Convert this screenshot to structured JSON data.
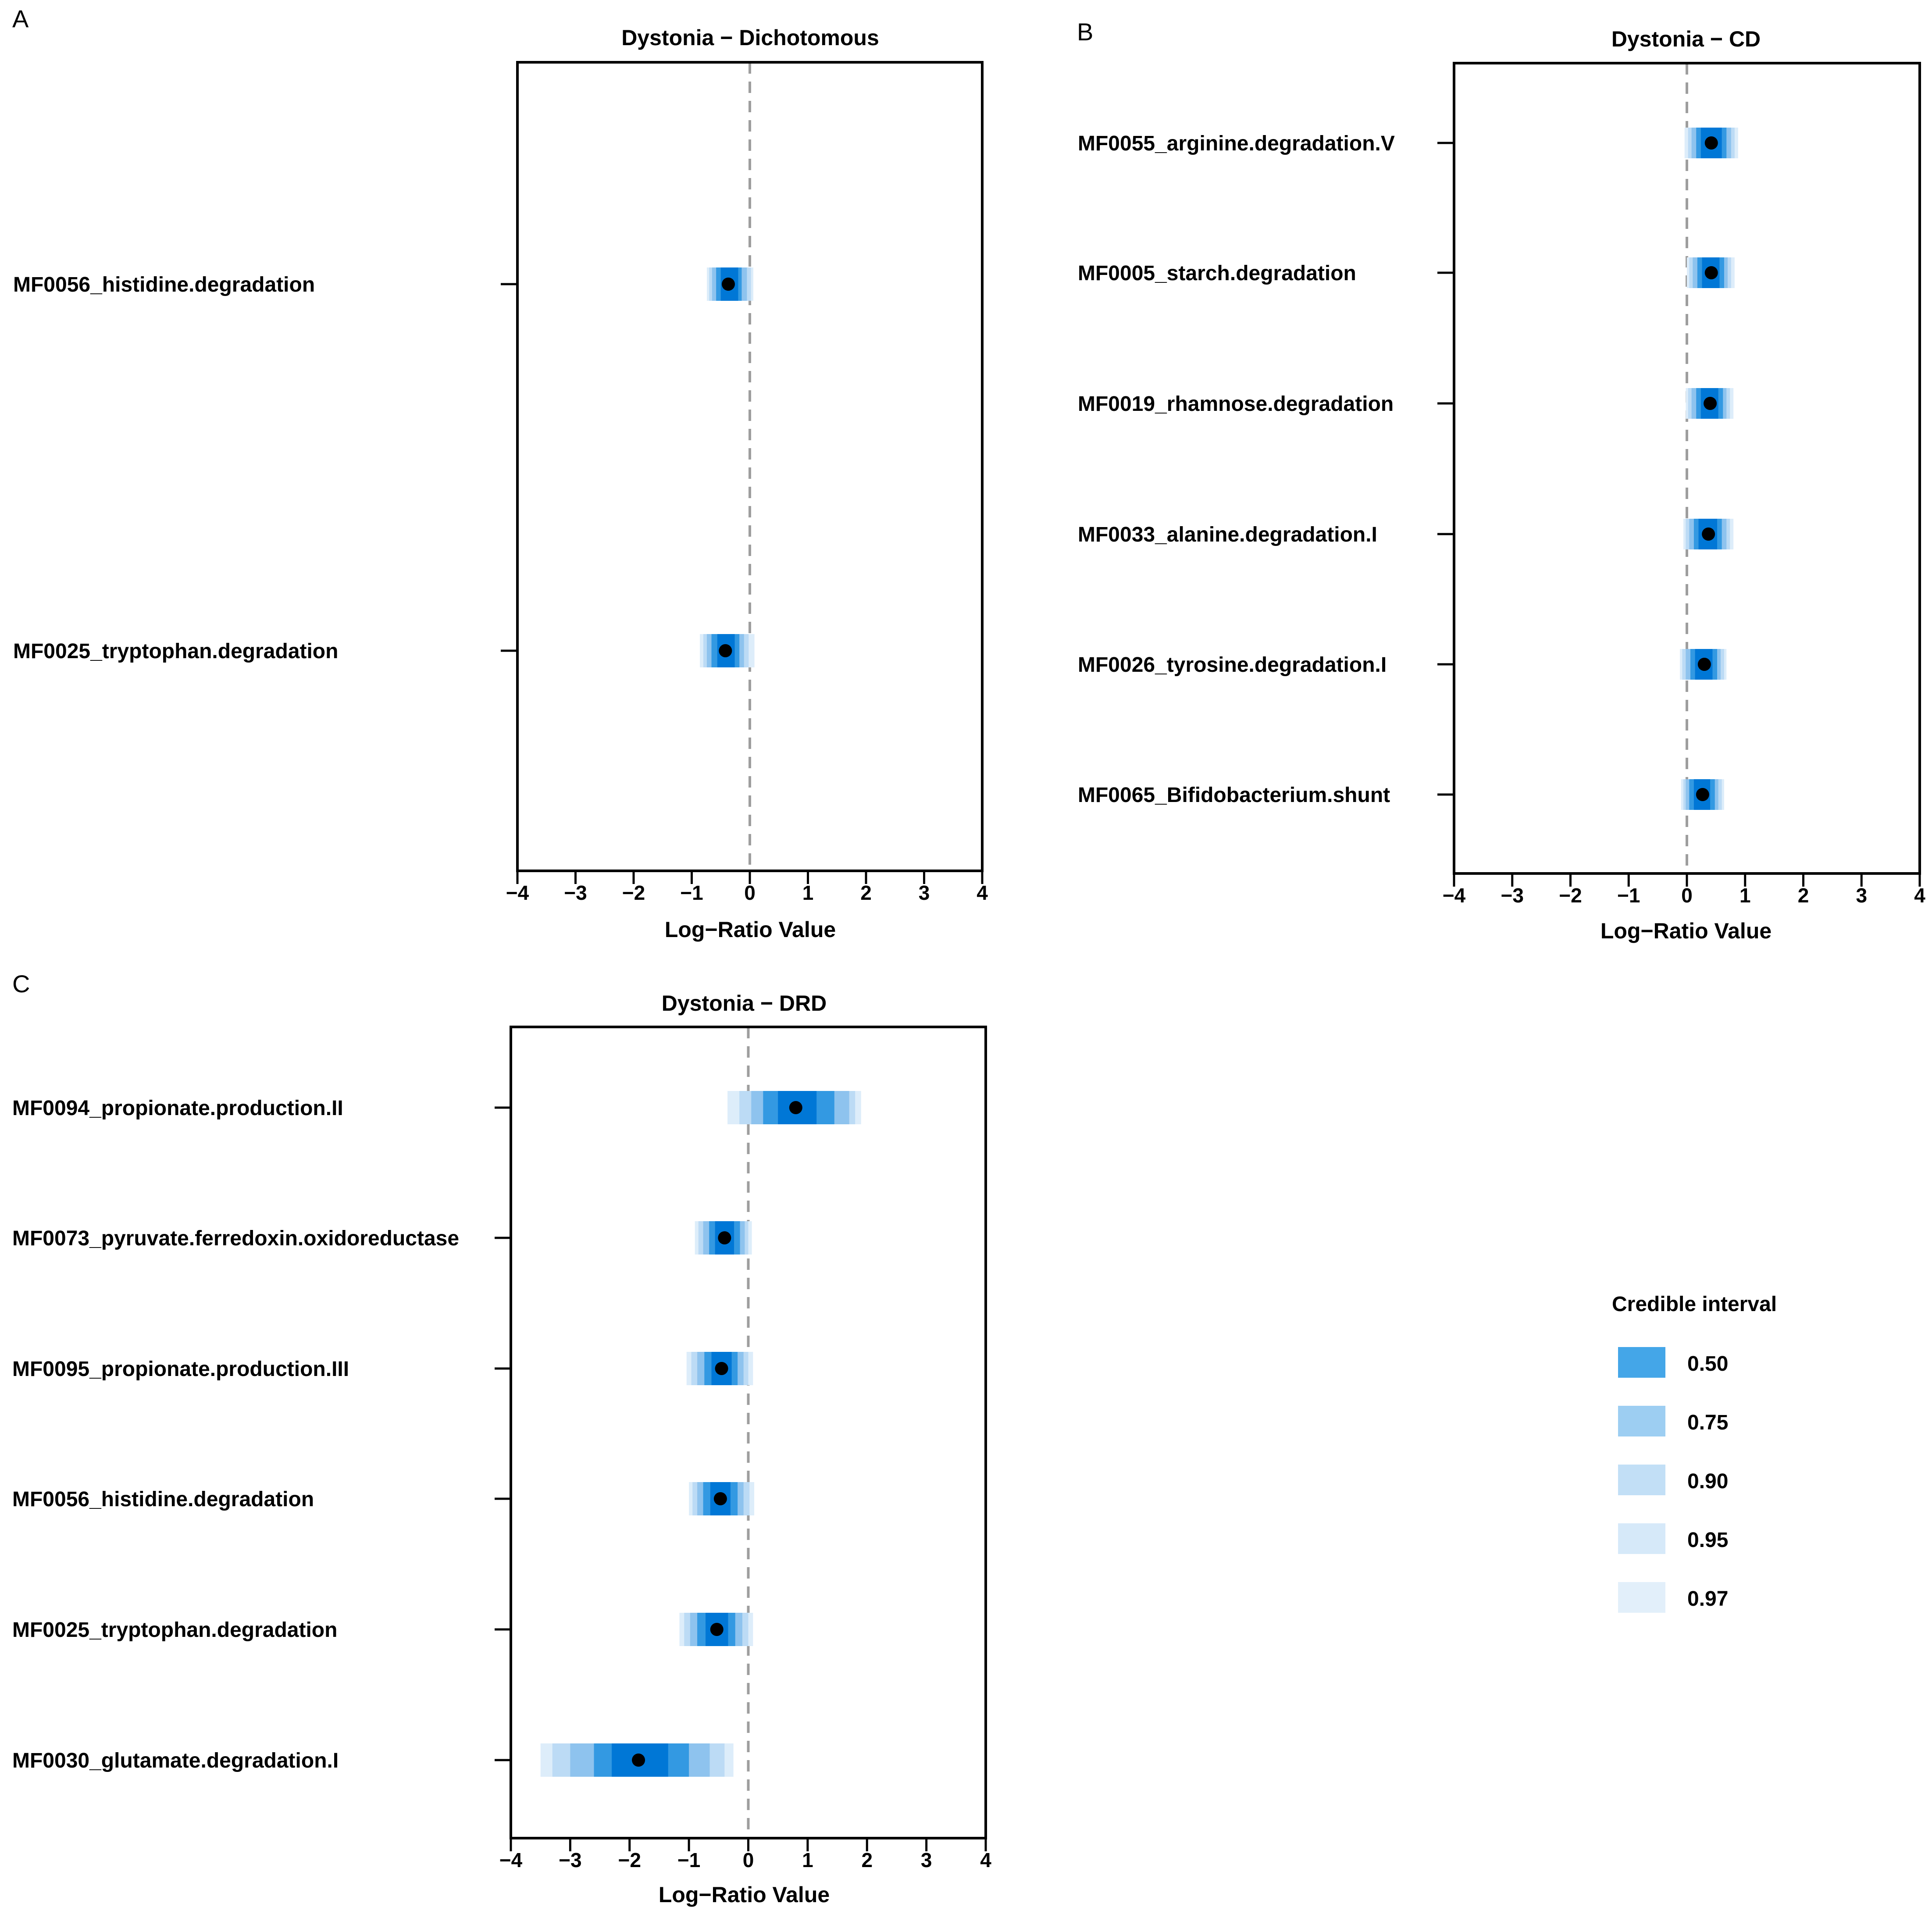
{
  "chart_data": [
    {
      "panel": "A",
      "type": "interval",
      "title": "Dystonia − Dichotomous",
      "xlabel": "Log−Ratio Value",
      "ylabel": "",
      "xlim": [
        -4,
        4
      ],
      "xticks": [
        -4,
        -3,
        -2,
        -1,
        0,
        1,
        2,
        3,
        4
      ],
      "xtick_labels": [
        "−4",
        "−3",
        "−2",
        "−1",
        "0",
        "1",
        "2",
        "3",
        "4"
      ],
      "reference_line": 0,
      "rows": [
        {
          "label": "MF0056_histidine.degradation",
          "median": -0.37,
          "ci": {
            "0.50": [
              -0.5,
              -0.2
            ],
            "0.75": [
              -0.58,
              -0.14
            ],
            "0.90": [
              -0.65,
              -0.05
            ],
            "0.95": [
              -0.7,
              0.02
            ],
            "0.97": [
              -0.74,
              0.06
            ]
          }
        },
        {
          "label": "MF0025_tryptophan.degradation",
          "median": -0.42,
          "ci": {
            "0.50": [
              -0.56,
              -0.26
            ],
            "0.75": [
              -0.66,
              -0.18
            ],
            "0.90": [
              -0.74,
              -0.1
            ],
            "0.95": [
              -0.8,
              -0.02
            ],
            "0.97": [
              -0.86,
              0.08
            ]
          }
        }
      ]
    },
    {
      "panel": "B",
      "type": "interval",
      "title": "Dystonia − CD",
      "xlabel": "Log−Ratio Value",
      "ylabel": "",
      "xlim": [
        -4,
        4
      ],
      "xticks": [
        -4,
        -3,
        -2,
        -1,
        0,
        1,
        2,
        3,
        4
      ],
      "xtick_labels": [
        "−4",
        "−3",
        "−2",
        "−1",
        "0",
        "1",
        "2",
        "3",
        "4"
      ],
      "reference_line": 0,
      "rows": [
        {
          "label": "MF0055_arginine.degradation.V",
          "median": 0.42,
          "ci": {
            "0.50": [
              0.24,
              0.6
            ],
            "0.75": [
              0.16,
              0.68
            ],
            "0.90": [
              0.08,
              0.76
            ],
            "0.95": [
              0.02,
              0.82
            ],
            "0.97": [
              -0.04,
              0.88
            ]
          }
        },
        {
          "label": "MF0005_starch.degradation",
          "median": 0.42,
          "ci": {
            "0.50": [
              0.26,
              0.56
            ],
            "0.75": [
              0.18,
              0.64
            ],
            "0.90": [
              0.1,
              0.7
            ],
            "0.95": [
              0.04,
              0.76
            ],
            "0.97": [
              0.0,
              0.82
            ]
          }
        },
        {
          "label": "MF0019_rhamnose.degradation",
          "median": 0.4,
          "ci": {
            "0.50": [
              0.24,
              0.54
            ],
            "0.75": [
              0.16,
              0.62
            ],
            "0.90": [
              0.08,
              0.68
            ],
            "0.95": [
              0.02,
              0.74
            ],
            "0.97": [
              -0.02,
              0.8
            ]
          }
        },
        {
          "label": "MF0033_alanine.degradation.I",
          "median": 0.37,
          "ci": {
            "0.50": [
              0.2,
              0.52
            ],
            "0.75": [
              0.12,
              0.6
            ],
            "0.90": [
              0.04,
              0.68
            ],
            "0.95": [
              -0.02,
              0.74
            ],
            "0.97": [
              -0.06,
              0.8
            ]
          }
        },
        {
          "label": "MF0026_tyrosine.degradation.I",
          "median": 0.3,
          "ci": {
            "0.50": [
              0.14,
              0.44
            ],
            "0.75": [
              0.06,
              0.52
            ],
            "0.90": [
              -0.02,
              0.58
            ],
            "0.95": [
              -0.08,
              0.64
            ],
            "0.97": [
              -0.12,
              0.68
            ]
          }
        },
        {
          "label": "MF0065_Bifidobacterium.shunt",
          "median": 0.27,
          "ci": {
            "0.50": [
              0.12,
              0.4
            ],
            "0.75": [
              0.04,
              0.48
            ],
            "0.90": [
              -0.02,
              0.54
            ],
            "0.95": [
              -0.06,
              0.6
            ],
            "0.97": [
              -0.1,
              0.64
            ]
          }
        }
      ]
    },
    {
      "panel": "C",
      "type": "interval",
      "title": "Dystonia − DRD",
      "xlabel": "Log−Ratio Value",
      "ylabel": "",
      "xlim": [
        -4,
        4
      ],
      "xticks": [
        -4,
        -3,
        -2,
        -1,
        0,
        1,
        2,
        3,
        4
      ],
      "xtick_labels": [
        "−4",
        "−3",
        "−2",
        "−1",
        "0",
        "1",
        "2",
        "3",
        "4"
      ],
      "reference_line": 0,
      "rows": [
        {
          "label": "MF0094_propionate.production.II",
          "median": 0.8,
          "ci": {
            "0.50": [
              0.5,
              1.15
            ],
            "0.75": [
              0.25,
              1.45
            ],
            "0.90": [
              0.05,
              1.7
            ],
            "0.95": [
              -0.15,
              1.8
            ],
            "0.97": [
              -0.35,
              1.9
            ]
          }
        },
        {
          "label": "MF0073_pyruvate.ferredoxin.oxidoreductase",
          "median": -0.4,
          "ci": {
            "0.50": [
              -0.56,
              -0.24
            ],
            "0.75": [
              -0.66,
              -0.14
            ],
            "0.90": [
              -0.76,
              -0.06
            ],
            "0.95": [
              -0.84,
              0.0
            ],
            "0.97": [
              -0.9,
              0.06
            ]
          }
        },
        {
          "label": "MF0095_propionate.production.III",
          "median": -0.45,
          "ci": {
            "0.50": [
              -0.62,
              -0.28
            ],
            "0.75": [
              -0.74,
              -0.18
            ],
            "0.90": [
              -0.86,
              -0.08
            ],
            "0.95": [
              -0.96,
              0.0
            ],
            "0.97": [
              -1.04,
              0.08
            ]
          }
        },
        {
          "label": "MF0056_histidine.degradation",
          "median": -0.47,
          "ci": {
            "0.50": [
              -0.64,
              -0.3
            ],
            "0.75": [
              -0.76,
              -0.18
            ],
            "0.90": [
              -0.86,
              -0.08
            ],
            "0.95": [
              -0.94,
              0.02
            ],
            "0.97": [
              -1.0,
              0.1
            ]
          }
        },
        {
          "label": "MF0025_tryptophan.degradation",
          "median": -0.53,
          "ci": {
            "0.50": [
              -0.72,
              -0.34
            ],
            "0.75": [
              -0.86,
              -0.22
            ],
            "0.90": [
              -0.98,
              -0.1
            ],
            "0.95": [
              -1.08,
              0.0
            ],
            "0.97": [
              -1.16,
              0.08
            ]
          }
        },
        {
          "label": "MF0030_glutamate.degradation.I",
          "median": -1.85,
          "ci": {
            "0.50": [
              -2.3,
              -1.35
            ],
            "0.75": [
              -2.6,
              -1.0
            ],
            "0.90": [
              -3.0,
              -0.65
            ],
            "0.95": [
              -3.3,
              -0.4
            ],
            "0.97": [
              -3.5,
              -0.25
            ]
          }
        }
      ]
    }
  ],
  "legend": {
    "title": "Credible interval",
    "position": "right",
    "items": [
      {
        "label": "0.50",
        "color": "#0077D6"
      },
      {
        "label": "0.75",
        "color": "#3399E2"
      },
      {
        "label": "0.90",
        "color": "#8EC3EE"
      },
      {
        "label": "0.95",
        "color": "#BCDBF5"
      },
      {
        "label": "0.97",
        "color": "#DDEDFA"
      }
    ]
  },
  "colors": {
    "ci_0.97": "#DDEDFA",
    "ci_0.95": "#BCDBF5",
    "ci_0.90": "#8EC3EE",
    "ci_0.75": "#3399E2",
    "ci_0.50": "#0077D6",
    "median_point": "#000000",
    "reference_line": "#9E9E9E",
    "legend_swatch_0.50": "#44A6E8",
    "legend_swatch_0.75": "#9DCEF2",
    "legend_swatch_0.90": "#C2DFF6",
    "legend_swatch_0.95": "#D6E9F9",
    "legend_swatch_0.97": "#E2EFFA"
  }
}
